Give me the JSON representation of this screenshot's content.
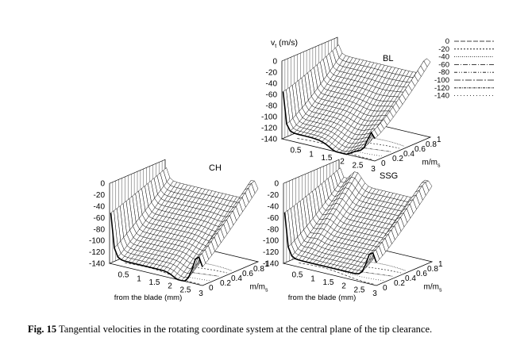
{
  "figure": {
    "caption_label": "Fig. 15",
    "caption_text": "Tangential velocities in the rotating coordinate system at the central plane of the tip clearance."
  },
  "chart_data": [
    {
      "type": "surface3d",
      "panel_label": "BL",
      "zlabel": "v",
      "zlabel_sub": "t",
      "zlabel_unit": " (m/s)",
      "xlabel": "",
      "ylabel": "m/m",
      "ylabel_sub": "s",
      "x_ticks": [
        "0.5",
        "1",
        "1.5",
        "2",
        "2.5",
        "3"
      ],
      "y_ticks": [
        "0",
        "0.2",
        "0.4",
        "0.6",
        "0.8",
        "1"
      ],
      "z_ticks": [
        "0",
        "-20",
        "-40",
        "-60",
        "-80",
        "-100",
        "-120",
        "-140"
      ],
      "xlim": [
        0,
        3
      ],
      "ylim": [
        0,
        1
      ],
      "zlim": [
        -140,
        0
      ],
      "contour_legend": [
        "0",
        "-20",
        "-40",
        "-60",
        "-80",
        "-100",
        "-120",
        "-140"
      ],
      "legend_position": "top-right"
    },
    {
      "type": "surface3d",
      "panel_label": "CH",
      "xlabel": "from the blade (mm)",
      "ylabel": "m/m",
      "ylabel_sub": "s",
      "x_ticks": [
        "0.5",
        "1",
        "1.5",
        "2",
        "2.5",
        "3"
      ],
      "y_ticks": [
        "0",
        "0.2",
        "0.4",
        "0.6",
        "0.8",
        "1"
      ],
      "z_ticks": [
        "0",
        "-20",
        "-40",
        "-60",
        "-80",
        "-100",
        "-120",
        "-140"
      ],
      "xlim": [
        0,
        3
      ],
      "ylim": [
        0,
        1
      ],
      "zlim": [
        -140,
        0
      ]
    },
    {
      "type": "surface3d",
      "panel_label": "SSG",
      "xlabel": "from the blade (mm)",
      "ylabel": "m/m",
      "ylabel_sub": "s",
      "x_ticks": [
        "0.5",
        "1",
        "1.5",
        "2",
        "2.5",
        "3"
      ],
      "y_ticks": [
        "0",
        "0.2",
        "0.4",
        "0.6",
        "0.8",
        "1"
      ],
      "z_ticks": [
        "0",
        "-20",
        "-40",
        "-60",
        "-80",
        "-100",
        "-120",
        "-140"
      ],
      "xlim": [
        0,
        3
      ],
      "ylim": [
        0,
        1
      ],
      "zlim": [
        -140,
        0
      ]
    }
  ]
}
